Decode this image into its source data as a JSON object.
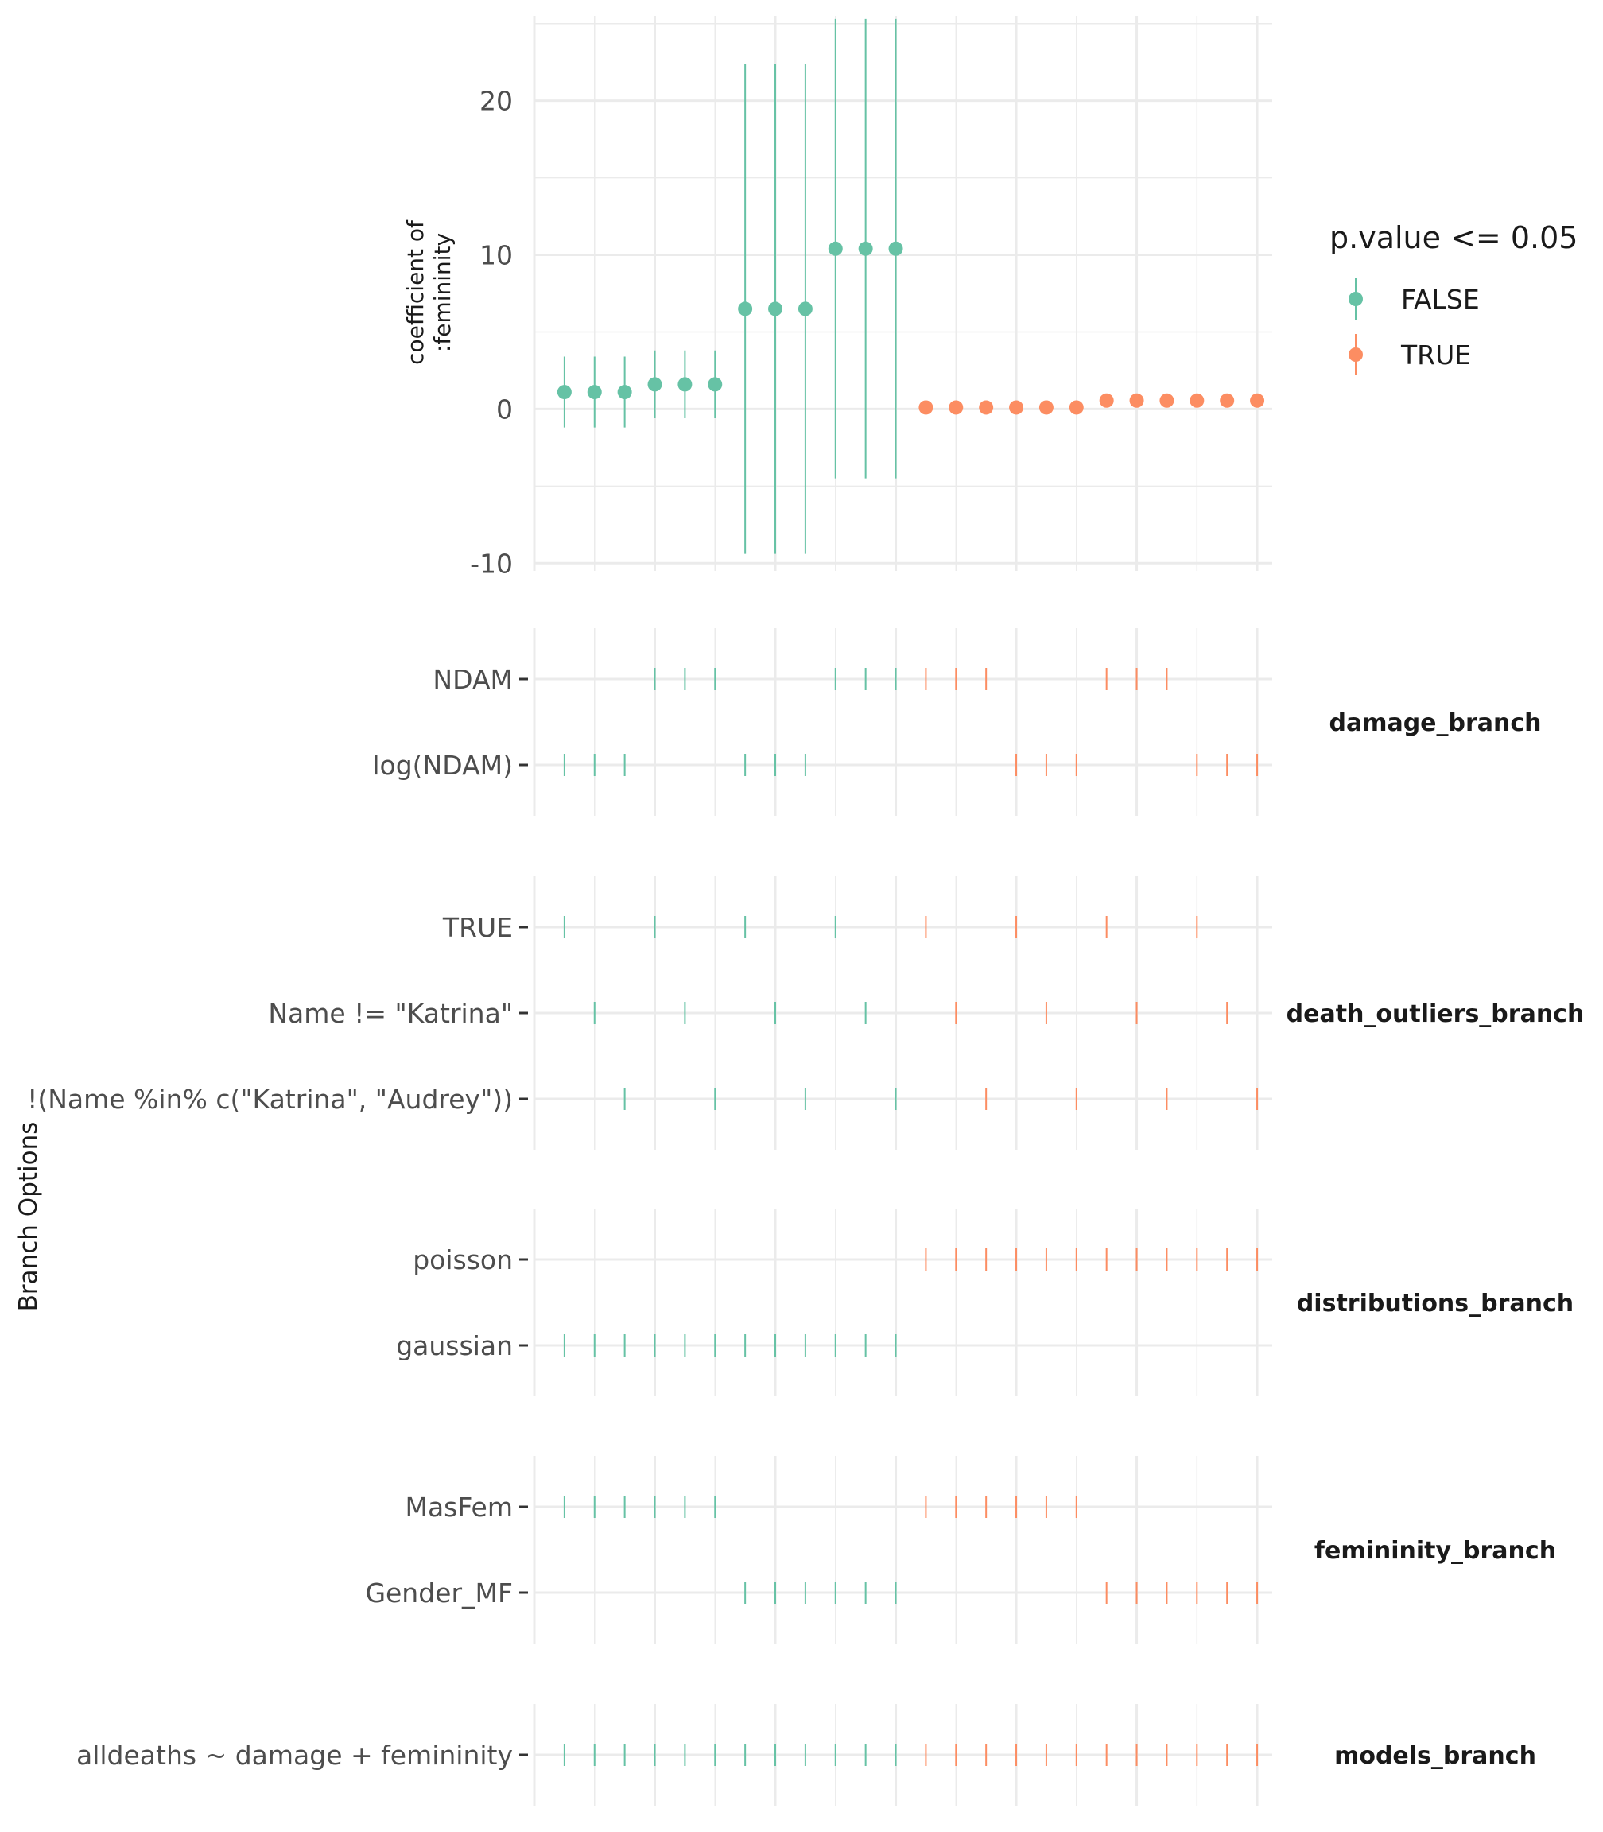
{
  "chart_data": {
    "type": "scatter",
    "description_kind": "multiverse specification curve",
    "legend": {
      "title": "p.value <= 0.05",
      "placement": "right",
      "entries": [
        {
          "label": "FALSE",
          "color": "#66c2a5"
        },
        {
          "label": "TRUE",
          "color": "#fc8d62"
        }
      ]
    },
    "grid": true,
    "xlim": [
      0,
      24.5
    ],
    "top_panel": {
      "ylabel_line1": "coefficient of",
      "ylabel_line2": ":femininity",
      "ylim": [
        -10.5,
        25.5
      ],
      "yticks": [
        -10,
        0,
        10,
        20
      ],
      "ytick_labels": [
        "-10",
        "0",
        "10",
        "20"
      ],
      "points": [
        {
          "x": 1,
          "y": 1.1,
          "lo": -1.2,
          "hi": 3.4,
          "sig": false
        },
        {
          "x": 2,
          "y": 1.1,
          "lo": -1.2,
          "hi": 3.4,
          "sig": false
        },
        {
          "x": 3,
          "y": 1.1,
          "lo": -1.2,
          "hi": 3.4,
          "sig": false
        },
        {
          "x": 4,
          "y": 1.6,
          "lo": -0.6,
          "hi": 3.8,
          "sig": false
        },
        {
          "x": 5,
          "y": 1.6,
          "lo": -0.6,
          "hi": 3.8,
          "sig": false
        },
        {
          "x": 6,
          "y": 1.6,
          "lo": -0.6,
          "hi": 3.8,
          "sig": false
        },
        {
          "x": 7,
          "y": 6.5,
          "lo": -9.4,
          "hi": 22.4,
          "sig": false
        },
        {
          "x": 8,
          "y": 6.5,
          "lo": -9.4,
          "hi": 22.4,
          "sig": false
        },
        {
          "x": 9,
          "y": 6.5,
          "lo": -9.4,
          "hi": 22.4,
          "sig": false
        },
        {
          "x": 10,
          "y": 10.4,
          "lo": -4.5,
          "hi": 25.3,
          "sig": false
        },
        {
          "x": 11,
          "y": 10.4,
          "lo": -4.5,
          "hi": 25.3,
          "sig": false
        },
        {
          "x": 12,
          "y": 10.4,
          "lo": -4.5,
          "hi": 25.3,
          "sig": false
        },
        {
          "x": 13,
          "y": 0.1,
          "lo": 0.05,
          "hi": 0.15,
          "sig": true
        },
        {
          "x": 14,
          "y": 0.1,
          "lo": 0.05,
          "hi": 0.15,
          "sig": true
        },
        {
          "x": 15,
          "y": 0.1,
          "lo": 0.05,
          "hi": 0.15,
          "sig": true
        },
        {
          "x": 16,
          "y": 0.1,
          "lo": 0.05,
          "hi": 0.15,
          "sig": true
        },
        {
          "x": 17,
          "y": 0.1,
          "lo": 0.05,
          "hi": 0.15,
          "sig": true
        },
        {
          "x": 18,
          "y": 0.1,
          "lo": 0.05,
          "hi": 0.15,
          "sig": true
        },
        {
          "x": 19,
          "y": 0.55,
          "lo": 0.45,
          "hi": 0.65,
          "sig": true
        },
        {
          "x": 20,
          "y": 0.55,
          "lo": 0.45,
          "hi": 0.65,
          "sig": true
        },
        {
          "x": 21,
          "y": 0.55,
          "lo": 0.45,
          "hi": 0.65,
          "sig": true
        },
        {
          "x": 22,
          "y": 0.55,
          "lo": 0.45,
          "hi": 0.65,
          "sig": true
        },
        {
          "x": 23,
          "y": 0.55,
          "lo": 0.45,
          "hi": 0.65,
          "sig": true
        },
        {
          "x": 24,
          "y": 0.55,
          "lo": 0.45,
          "hi": 0.65,
          "sig": true
        }
      ]
    },
    "options_ylabel": "Branch Options",
    "branches": [
      {
        "name": "damage_branch",
        "levels": [
          "NDAM",
          "log(NDAM)"
        ],
        "members": [
          [
            4,
            5,
            6,
            10,
            11,
            12,
            13,
            14,
            15,
            19,
            20,
            21
          ],
          [
            1,
            2,
            3,
            7,
            8,
            9,
            16,
            17,
            18,
            22,
            23,
            24
          ]
        ]
      },
      {
        "name": "death_outliers_branch",
        "levels": [
          "TRUE",
          "Name != \"Katrina\"",
          "!(Name %in% c(\"Katrina\", \"Audrey\"))"
        ],
        "members": [
          [
            1,
            4,
            7,
            10,
            13,
            16,
            19,
            22
          ],
          [
            2,
            5,
            8,
            11,
            14,
            17,
            20,
            23
          ],
          [
            3,
            6,
            9,
            12,
            15,
            18,
            21,
            24
          ]
        ]
      },
      {
        "name": "distributions_branch",
        "levels": [
          "poisson",
          "gaussian"
        ],
        "members": [
          [
            13,
            14,
            15,
            16,
            17,
            18,
            19,
            20,
            21,
            22,
            23,
            24
          ],
          [
            1,
            2,
            3,
            4,
            5,
            6,
            7,
            8,
            9,
            10,
            11,
            12
          ]
        ]
      },
      {
        "name": "femininity_branch",
        "levels": [
          "MasFem",
          "Gender_MF"
        ],
        "members": [
          [
            1,
            2,
            3,
            4,
            5,
            6,
            13,
            14,
            15,
            16,
            17,
            18
          ],
          [
            7,
            8,
            9,
            10,
            11,
            12,
            19,
            20,
            21,
            22,
            23,
            24
          ]
        ]
      },
      {
        "name": "models_branch",
        "levels": [
          "alldeaths ~ damage + femininity"
        ],
        "members": [
          [
            1,
            2,
            3,
            4,
            5,
            6,
            7,
            8,
            9,
            10,
            11,
            12,
            13,
            14,
            15,
            16,
            17,
            18,
            19,
            20,
            21,
            22,
            23,
            24
          ]
        ]
      }
    ]
  }
}
